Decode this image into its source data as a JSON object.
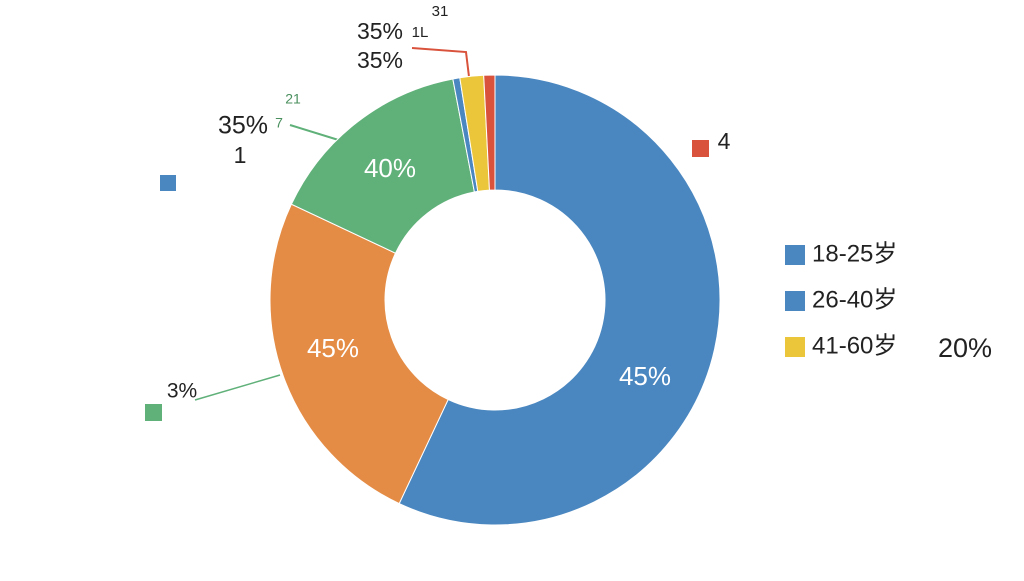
{
  "chart_data": {
    "type": "donut",
    "categories": [
      "18-25岁",
      null,
      null,
      "26-40岁",
      "41-60岁",
      null
    ],
    "values": [
      57,
      25,
      15,
      0.5,
      1.7,
      0.8
    ],
    "colors": [
      "#4a87c0",
      "#e48c45",
      "#5fb079",
      "#4a87c0",
      "#ecc63a",
      "#d9523b"
    ],
    "annotations": [
      "45%",
      "45%",
      "40%",
      "35%",
      "1",
      "3%",
      "35%",
      "35%",
      "31",
      "1L",
      "4",
      "20%",
      "21",
      "7"
    ]
  }
}
